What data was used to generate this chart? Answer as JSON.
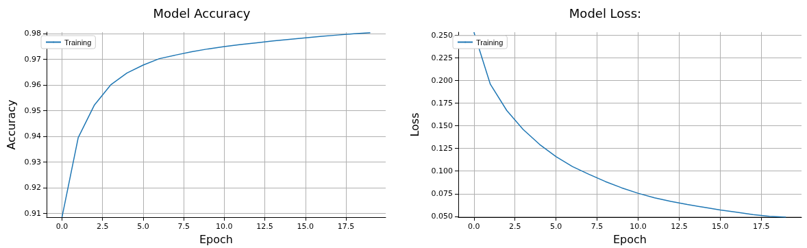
{
  "chart_data": [
    {
      "type": "line",
      "title": "Model Accuracy",
      "xlabel": "Epoch",
      "ylabel": "Accuracy",
      "x": [
        0,
        1,
        2,
        3,
        4,
        5,
        6,
        7,
        8,
        9,
        10,
        11,
        12,
        13,
        14,
        15,
        16,
        17,
        18,
        19
      ],
      "series": [
        {
          "name": "Training",
          "color": "#1f77b4",
          "values": [
            0.9085,
            0.9395,
            0.9522,
            0.96,
            0.9646,
            0.9677,
            0.9702,
            0.9716,
            0.9729,
            0.974,
            0.9749,
            0.9757,
            0.9764,
            0.9771,
            0.9777,
            0.9783,
            0.9789,
            0.9794,
            0.9799,
            0.9803
          ]
        }
      ],
      "xlim": [
        -0.95,
        19.95
      ],
      "xticks": [
        {
          "value": 0,
          "label": "0.0"
        },
        2.5,
        {
          "value": 5,
          "label": "5.0"
        },
        7.5,
        {
          "value": 10,
          "label": "10.0"
        },
        12.5,
        {
          "value": 15,
          "label": "15.0"
        },
        17.5
      ],
      "ylim": [
        0.9085,
        0.9805
      ],
      "yticks": [
        0.91,
        0.92,
        0.93,
        0.94,
        0.95,
        0.96,
        0.97,
        0.98
      ],
      "grid": true,
      "legend": "top left"
    },
    {
      "type": "line",
      "title": "Model Loss:",
      "xlabel": "Epoch",
      "ylabel": "Loss",
      "x": [
        0,
        1,
        2,
        3,
        4,
        5,
        6,
        7,
        8,
        9,
        10,
        11,
        12,
        13,
        14,
        15,
        16,
        17,
        18,
        19
      ],
      "series": [
        {
          "name": "Training",
          "color": "#1f77b4",
          "values": [
            0.2535,
            0.196,
            0.167,
            0.146,
            0.1295,
            0.116,
            0.105,
            0.0965,
            0.0885,
            0.0815,
            0.0755,
            0.0705,
            0.0665,
            0.063,
            0.06,
            0.057,
            0.0545,
            0.052,
            0.05,
            0.049
          ]
        }
      ],
      "xlim": [
        -0.95,
        19.95
      ],
      "xticks": [
        {
          "value": 0,
          "label": "0.0"
        },
        2.5,
        {
          "value": 5,
          "label": "5.0"
        },
        7.5,
        {
          "value": 10,
          "label": "10.0"
        },
        12.5,
        {
          "value": 15,
          "label": "15.0"
        },
        17.5
      ],
      "ylim": [
        0.049,
        0.2535
      ],
      "yticks": [
        {
          "value": 0.05,
          "label": "0.050"
        },
        {
          "value": 0.075,
          "label": "0.075"
        },
        {
          "value": 0.1,
          "label": "0.100"
        },
        {
          "value": 0.125,
          "label": "0.125"
        },
        {
          "value": 0.15,
          "label": "0.150"
        },
        {
          "value": 0.175,
          "label": "0.175"
        },
        {
          "value": 0.2,
          "label": "0.200"
        },
        {
          "value": 0.225,
          "label": "0.225"
        },
        {
          "value": 0.25,
          "label": "0.250"
        }
      ],
      "grid": true,
      "legend": "top left"
    }
  ]
}
